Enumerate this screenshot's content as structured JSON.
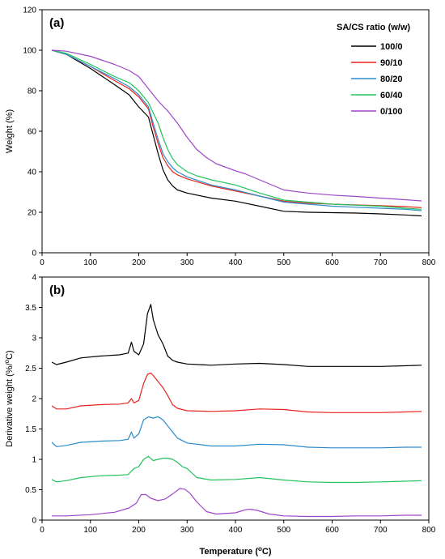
{
  "chart_data": [
    {
      "type": "line",
      "panel_label": "(a)",
      "xlabel": "",
      "ylabel": "Weight (%)",
      "xlim": [
        0,
        800
      ],
      "ylim": [
        0,
        120
      ],
      "xticks": [
        0,
        100,
        200,
        300,
        400,
        500,
        600,
        700,
        800
      ],
      "yticks": [
        0,
        20,
        40,
        60,
        80,
        100,
        120
      ],
      "legend_title": "SA/CS ratio (w/w)",
      "legend_position": "top-right",
      "grid": false,
      "series": [
        {
          "name": "100/0",
          "color": "#000000",
          "x": [
            20,
            50,
            100,
            150,
            180,
            200,
            220,
            230,
            240,
            250,
            260,
            270,
            280,
            300,
            350,
            400,
            450,
            500,
            550,
            600,
            650,
            700,
            750,
            785
          ],
          "y": [
            100,
            98,
            91,
            83,
            78,
            72,
            67,
            58,
            49,
            41,
            36,
            33,
            31,
            29.5,
            27,
            25.5,
            23,
            20.5,
            20,
            19.8,
            19.6,
            19.2,
            18.7,
            18.2
          ]
        },
        {
          "name": "90/10",
          "color": "#e8231e",
          "x": [
            20,
            50,
            100,
            150,
            180,
            200,
            220,
            230,
            240,
            250,
            260,
            270,
            280,
            300,
            350,
            400,
            450,
            500,
            550,
            600,
            650,
            700,
            750,
            785
          ],
          "y": [
            100,
            98,
            92,
            85,
            81,
            77,
            71,
            62,
            54,
            47,
            43,
            40,
            38.5,
            36.5,
            33,
            30.5,
            28,
            25.5,
            24.5,
            24,
            23.6,
            23.3,
            22.8,
            22.3
          ]
        },
        {
          "name": "80/20",
          "color": "#2b8ccd",
          "x": [
            20,
            50,
            100,
            150,
            180,
            200,
            220,
            230,
            240,
            250,
            260,
            270,
            280,
            300,
            350,
            400,
            450,
            500,
            550,
            600,
            650,
            700,
            750,
            785
          ],
          "y": [
            100,
            98,
            92,
            86,
            82,
            78,
            72,
            64,
            56,
            49,
            45,
            42,
            40,
            37.5,
            33.5,
            31,
            28,
            25,
            24,
            23,
            22.5,
            22,
            21.5,
            20.8
          ]
        },
        {
          "name": "60/40",
          "color": "#21c45a",
          "x": [
            20,
            50,
            100,
            150,
            180,
            200,
            220,
            240,
            250,
            260,
            270,
            280,
            300,
            320,
            350,
            400,
            450,
            500,
            550,
            600,
            650,
            700,
            750,
            785
          ],
          "y": [
            100,
            98.5,
            93,
            87,
            84,
            80,
            74,
            64,
            57,
            51,
            46.5,
            43.5,
            40,
            38,
            36,
            33.5,
            29.5,
            26,
            25,
            24,
            23.5,
            23,
            22,
            21.5
          ]
        },
        {
          "name": "0/100",
          "color": "#9e46c8",
          "x": [
            20,
            50,
            100,
            150,
            180,
            200,
            220,
            240,
            260,
            280,
            300,
            320,
            340,
            360,
            400,
            420,
            450,
            500,
            550,
            600,
            650,
            700,
            750,
            785
          ],
          "y": [
            100,
            99.5,
            97,
            93,
            90,
            87,
            81,
            75,
            70,
            64,
            57,
            51,
            47,
            44,
            40.5,
            39,
            36,
            31,
            29.5,
            28.5,
            27.8,
            27,
            26.2,
            25.6
          ]
        }
      ]
    },
    {
      "type": "line",
      "panel_label": "(b)",
      "xlabel": "Temperature (oC)",
      "ylabel": "Derivative weight (%/oC)",
      "xlim": [
        0,
        800
      ],
      "ylim": [
        0,
        4
      ],
      "xticks": [
        0,
        100,
        200,
        300,
        400,
        500,
        600,
        700,
        800
      ],
      "yticks": [
        0,
        0.5,
        1,
        1.5,
        2,
        2.5,
        3,
        3.5,
        4
      ],
      "grid": false,
      "series": [
        {
          "name": "100/0",
          "color": "#000000",
          "x": [
            20,
            30,
            50,
            80,
            120,
            160,
            178,
            185,
            190,
            200,
            210,
            218,
            225,
            230,
            240,
            250,
            260,
            270,
            280,
            300,
            350,
            400,
            450,
            500,
            550,
            600,
            650,
            700,
            750,
            785
          ],
          "y": [
            2.6,
            2.56,
            2.6,
            2.67,
            2.7,
            2.72,
            2.75,
            2.93,
            2.78,
            2.72,
            2.9,
            3.4,
            3.55,
            3.3,
            3.05,
            2.9,
            2.7,
            2.63,
            2.6,
            2.57,
            2.55,
            2.57,
            2.58,
            2.56,
            2.53,
            2.53,
            2.53,
            2.53,
            2.54,
            2.55
          ]
        },
        {
          "name": "90/10",
          "color": "#e8231e",
          "x": [
            20,
            30,
            50,
            80,
            120,
            160,
            178,
            185,
            190,
            200,
            210,
            218,
            225,
            230,
            240,
            250,
            260,
            270,
            280,
            300,
            350,
            400,
            450,
            500,
            550,
            600,
            650,
            700,
            750,
            785
          ],
          "y": [
            1.88,
            1.83,
            1.83,
            1.88,
            1.9,
            1.91,
            1.93,
            2.0,
            1.93,
            1.97,
            2.25,
            2.4,
            2.42,
            2.38,
            2.28,
            2.18,
            2.05,
            1.9,
            1.84,
            1.8,
            1.79,
            1.8,
            1.83,
            1.82,
            1.78,
            1.77,
            1.77,
            1.77,
            1.78,
            1.79
          ]
        },
        {
          "name": "80/20",
          "color": "#2b8ccd",
          "x": [
            20,
            30,
            50,
            80,
            120,
            160,
            178,
            185,
            190,
            200,
            210,
            220,
            230,
            240,
            250,
            260,
            270,
            280,
            300,
            350,
            400,
            450,
            500,
            550,
            600,
            650,
            700,
            750,
            785
          ],
          "y": [
            1.28,
            1.21,
            1.23,
            1.28,
            1.3,
            1.31,
            1.33,
            1.45,
            1.35,
            1.42,
            1.65,
            1.7,
            1.68,
            1.7,
            1.65,
            1.55,
            1.45,
            1.35,
            1.27,
            1.22,
            1.22,
            1.25,
            1.24,
            1.2,
            1.19,
            1.19,
            1.19,
            1.2,
            1.2
          ]
        },
        {
          "name": "60/40",
          "color": "#21c45a",
          "x": [
            20,
            30,
            50,
            80,
            120,
            160,
            178,
            190,
            200,
            210,
            220,
            230,
            240,
            250,
            260,
            270,
            280,
            290,
            300,
            320,
            350,
            400,
            450,
            500,
            550,
            600,
            650,
            700,
            750,
            785
          ],
          "y": [
            0.67,
            0.63,
            0.65,
            0.7,
            0.73,
            0.74,
            0.75,
            0.85,
            0.88,
            1.0,
            1.05,
            0.98,
            1.0,
            1.02,
            1.02,
            1.0,
            0.95,
            0.88,
            0.85,
            0.7,
            0.66,
            0.67,
            0.7,
            0.66,
            0.63,
            0.62,
            0.62,
            0.63,
            0.64,
            0.65
          ]
        },
        {
          "name": "0/100",
          "color": "#9e46c8",
          "x": [
            20,
            50,
            100,
            150,
            180,
            195,
            205,
            215,
            225,
            240,
            255,
            270,
            285,
            295,
            305,
            320,
            340,
            360,
            400,
            420,
            430,
            445,
            470,
            500,
            550,
            600,
            650,
            700,
            750,
            785
          ],
          "y": [
            0.07,
            0.07,
            0.09,
            0.13,
            0.2,
            0.28,
            0.42,
            0.42,
            0.36,
            0.32,
            0.35,
            0.43,
            0.52,
            0.51,
            0.45,
            0.3,
            0.14,
            0.1,
            0.12,
            0.17,
            0.18,
            0.16,
            0.1,
            0.07,
            0.06,
            0.06,
            0.07,
            0.07,
            0.08,
            0.08
          ]
        }
      ]
    }
  ]
}
